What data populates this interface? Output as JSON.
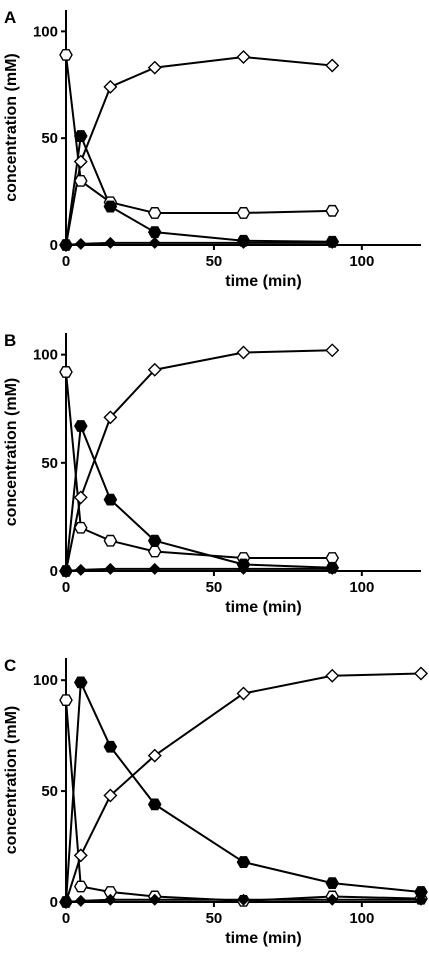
{
  "chart_data": [
    {
      "type": "line",
      "panel_label": "A",
      "xlabel": "time (min)",
      "ylabel": "concentration (mM)",
      "xlim": [
        0,
        120
      ],
      "ylim": [
        0,
        110
      ],
      "xticks": [
        0,
        50,
        100
      ],
      "yticks": [
        0,
        50,
        100
      ],
      "grid": false,
      "x": [
        0,
        5,
        15,
        30,
        60,
        90
      ],
      "series": [
        {
          "marker": "open-hexagon",
          "values": [
            89,
            30,
            20,
            15,
            15,
            16
          ]
        },
        {
          "marker": "filled-hexagon",
          "values": [
            0,
            51,
            18,
            6,
            2,
            1.5
          ]
        },
        {
          "marker": "open-diamond",
          "values": [
            0,
            39,
            74,
            83,
            88,
            84
          ]
        },
        {
          "marker": "filled-diamond",
          "values": [
            0,
            0.5,
            1,
            1,
            1,
            1
          ]
        }
      ]
    },
    {
      "type": "line",
      "panel_label": "B",
      "xlabel": "time (min)",
      "ylabel": "concentration (mM)",
      "xlim": [
        0,
        120
      ],
      "ylim": [
        0,
        110
      ],
      "xticks": [
        0,
        50,
        100
      ],
      "yticks": [
        0,
        50,
        100
      ],
      "grid": false,
      "x": [
        0,
        5,
        15,
        30,
        60,
        90
      ],
      "series": [
        {
          "marker": "open-hexagon",
          "values": [
            92,
            20,
            14,
            9,
            6,
            6
          ]
        },
        {
          "marker": "filled-hexagon",
          "values": [
            0,
            67,
            33,
            14,
            3,
            1.5
          ]
        },
        {
          "marker": "open-diamond",
          "values": [
            0,
            34,
            71,
            93,
            101,
            102
          ]
        },
        {
          "marker": "filled-diamond",
          "values": [
            0,
            0.5,
            1,
            1,
            1,
            1
          ]
        }
      ]
    },
    {
      "type": "line",
      "panel_label": "C",
      "xlabel": "time (min)",
      "ylabel": "concentration (mM)",
      "xlim": [
        0,
        120
      ],
      "ylim": [
        0,
        110
      ],
      "xticks": [
        0,
        50,
        100
      ],
      "yticks": [
        0,
        50,
        100
      ],
      "grid": false,
      "x": [
        0,
        5,
        15,
        30,
        60,
        90,
        120
      ],
      "series": [
        {
          "marker": "open-hexagon",
          "values": [
            91,
            7,
            4.5,
            2.5,
            0.5,
            2.5,
            1.5
          ]
        },
        {
          "marker": "filled-hexagon",
          "values": [
            0,
            99,
            70,
            44,
            18,
            8.5,
            4.5
          ]
        },
        {
          "marker": "open-diamond",
          "values": [
            0,
            21,
            48,
            66,
            94,
            102,
            103
          ]
        },
        {
          "marker": "filled-diamond",
          "values": [
            0,
            0.5,
            1,
            1,
            1,
            1,
            1
          ]
        }
      ]
    }
  ]
}
